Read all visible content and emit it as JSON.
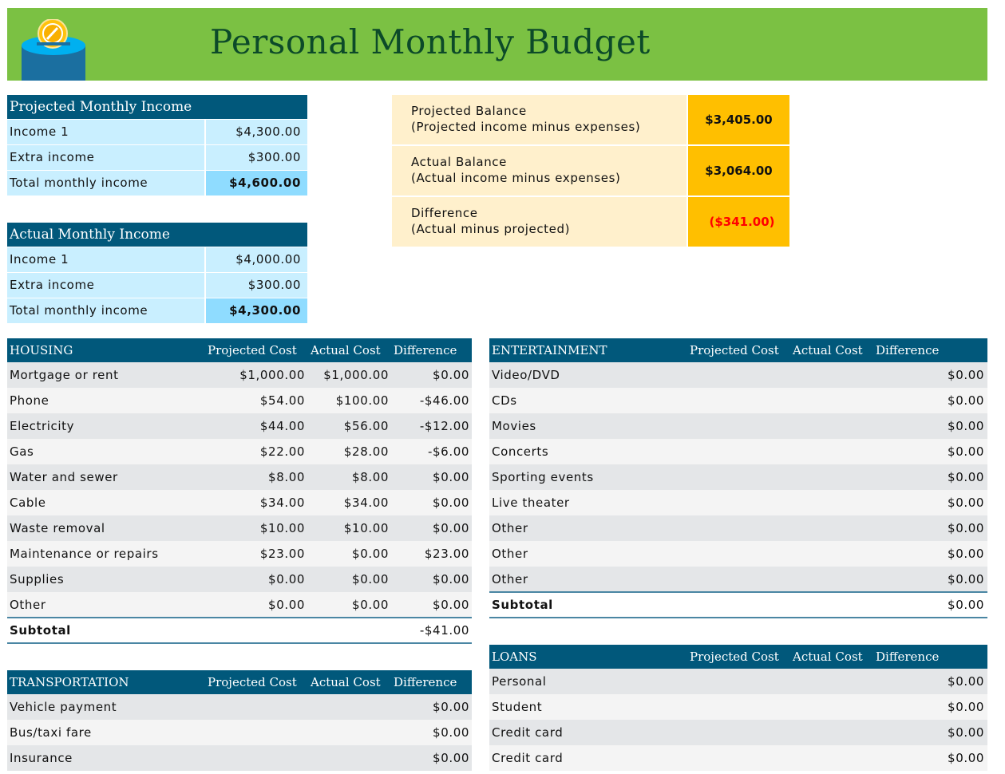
{
  "title": "Personal Monthly Budget",
  "logo_icon": "coin-bank-icon",
  "colors": {
    "banner": "#7bc143",
    "header": "#01587b",
    "income_row": "#c9efff",
    "income_total": "#8fdcff",
    "balance_label": "#fff0cc",
    "balance_value": "#ffbf00",
    "negative": "#ff0000"
  },
  "projected_income": {
    "header": "Projected Monthly Income",
    "rows": [
      {
        "label": "Income 1",
        "value": "$4,300.00"
      },
      {
        "label": "Extra income",
        "value": "$300.00"
      },
      {
        "label": "Total monthly income",
        "value": "$4,600.00"
      }
    ]
  },
  "actual_income": {
    "header": "Actual Monthly Income",
    "rows": [
      {
        "label": "Income 1",
        "value": "$4,000.00"
      },
      {
        "label": "Extra income",
        "value": "$300.00"
      },
      {
        "label": "Total monthly income",
        "value": "$4,300.00"
      }
    ]
  },
  "balance": [
    {
      "label": "Projected Balance",
      "sub": "(Projected income minus expenses)",
      "value": "$3,405.00"
    },
    {
      "label": "Actual Balance",
      "sub": "(Actual income minus expenses)",
      "value": "$3,064.00"
    },
    {
      "label": "Difference",
      "sub": "(Actual minus projected)",
      "value": "($341.00)"
    }
  ],
  "housing": {
    "header": "HOUSING",
    "cols": [
      "Projected Cost",
      "Actual Cost",
      "Difference"
    ],
    "rows": [
      [
        "Mortgage or rent",
        "$1,000.00",
        "$1,000.00",
        "$0.00"
      ],
      [
        "Phone",
        "$54.00",
        "$100.00",
        "-$46.00"
      ],
      [
        "Electricity",
        "$44.00",
        "$56.00",
        "-$12.00"
      ],
      [
        "Gas",
        "$22.00",
        "$28.00",
        "-$6.00"
      ],
      [
        "Water and sewer",
        "$8.00",
        "$8.00",
        "$0.00"
      ],
      [
        "Cable",
        "$34.00",
        "$34.00",
        "$0.00"
      ],
      [
        "Waste removal",
        "$10.00",
        "$10.00",
        "$0.00"
      ],
      [
        "Maintenance or repairs",
        "$23.00",
        "$0.00",
        "$23.00"
      ],
      [
        "Supplies",
        "$0.00",
        "$0.00",
        "$0.00"
      ],
      [
        "Other",
        "$0.00",
        "$0.00",
        "$0.00"
      ]
    ],
    "subtotal": [
      "Subtotal",
      "",
      "",
      "-$41.00"
    ]
  },
  "entertainment": {
    "header": "ENTERTAINMENT",
    "cols": [
      "Projected Cost",
      "Actual Cost",
      "Difference"
    ],
    "rows": [
      [
        "Video/DVD",
        "",
        "",
        "$0.00"
      ],
      [
        "CDs",
        "",
        "",
        "$0.00"
      ],
      [
        "Movies",
        "",
        "",
        "$0.00"
      ],
      [
        "Concerts",
        "",
        "",
        "$0.00"
      ],
      [
        "Sporting events",
        "",
        "",
        "$0.00"
      ],
      [
        "Live theater",
        "",
        "",
        "$0.00"
      ],
      [
        "Other",
        "",
        "",
        "$0.00"
      ],
      [
        "Other",
        "",
        "",
        "$0.00"
      ],
      [
        "Other",
        "",
        "",
        "$0.00"
      ]
    ],
    "subtotal": [
      "Subtotal",
      "",
      "",
      "$0.00"
    ]
  },
  "transportation": {
    "header": "TRANSPORTATION",
    "cols": [
      "Projected Cost",
      "Actual Cost",
      "Difference"
    ],
    "rows": [
      [
        "Vehicle payment",
        "",
        "",
        "$0.00"
      ],
      [
        "Bus/taxi fare",
        "",
        "",
        "$0.00"
      ],
      [
        "Insurance",
        "",
        "",
        "$0.00"
      ]
    ]
  },
  "loans": {
    "header": "LOANS",
    "cols": [
      "Projected Cost",
      "Actual Cost",
      "Difference"
    ],
    "rows": [
      [
        "Personal",
        "",
        "",
        "$0.00"
      ],
      [
        "Student",
        "",
        "",
        "$0.00"
      ],
      [
        "Credit card",
        "",
        "",
        "$0.00"
      ],
      [
        "Credit card",
        "",
        "",
        "$0.00"
      ]
    ]
  }
}
